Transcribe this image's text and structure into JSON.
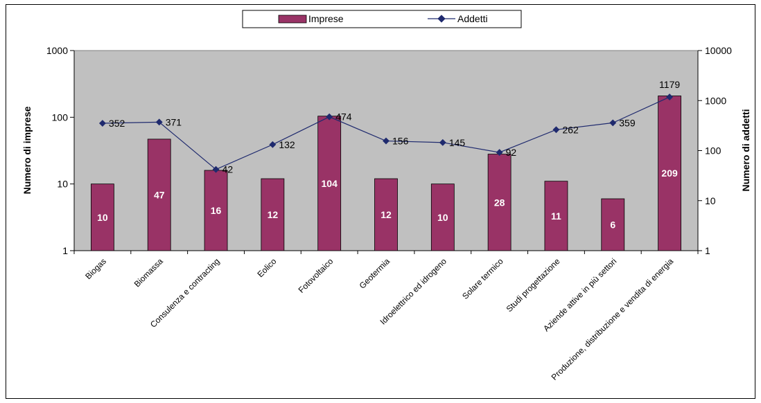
{
  "chart_data": {
    "type": "bar",
    "categories": [
      "Biogas",
      "Biomassa",
      "Consulenza e contracting",
      "Eolico",
      "Fotovoltaico",
      "Geotermia",
      "Idroelettrico ed idrogeno",
      "Solare termico",
      "Studi progettazione",
      "Aziende attive in più settori",
      "Produzione, distribuzione e vendita di energia"
    ],
    "series": [
      {
        "name": "Imprese",
        "type": "bar",
        "axis": "left",
        "values": [
          10,
          47,
          16,
          12,
          104,
          12,
          10,
          28,
          11,
          6,
          209
        ],
        "labels": [
          "10",
          "47",
          "16",
          "12",
          "104",
          "12",
          "10",
          "28",
          "11",
          "6",
          "209"
        ]
      },
      {
        "name": "Addetti",
        "type": "line",
        "axis": "right",
        "values": [
          352,
          371,
          42,
          132,
          474,
          156,
          145,
          92,
          262,
          359,
          1179
        ],
        "labels": [
          "352",
          "371",
          "42",
          "132",
          "474",
          "156",
          "145",
          "92",
          "262",
          "359",
          "1179"
        ]
      }
    ],
    "ylabel": "Numero di imprese",
    "y2label": "Numero di addetti",
    "yscale": "log",
    "ylim": [
      1,
      1000
    ],
    "y2lim": [
      1,
      10000
    ],
    "yticks": [
      "1",
      "10",
      "100",
      "1000"
    ],
    "y2ticks": [
      "1",
      "10",
      "100",
      "1000",
      "10000"
    ],
    "legend_position": "top-center",
    "grid": false,
    "colors": {
      "bar": "#993366",
      "line": "#1f2a6e",
      "plot_area": "#c0c0c0"
    }
  }
}
